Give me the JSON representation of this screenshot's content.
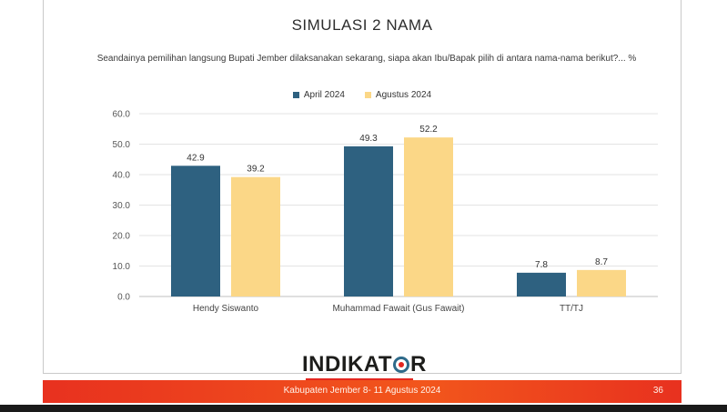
{
  "slide": {
    "title": "SIMULASI 2 NAMA",
    "question": "Seandainya pemilihan langsung Bupati Jember dilaksanakan sekarang, siapa akan Ibu/Bapak pilih di antara nama-nama berikut?... %"
  },
  "logo": {
    "text_part1": "INDIKAT",
    "text_part2": "R"
  },
  "footer": {
    "text": "Kabupaten Jember 8- 11 Agustus 2024",
    "page_number": "36"
  },
  "colors": {
    "april": "#2e6180",
    "agustus": "#fbd787",
    "footer": "#e8311f"
  },
  "chart_data": {
    "type": "bar",
    "title": "",
    "xlabel": "",
    "ylabel": "",
    "categories": [
      "Hendy Siswanto",
      "Muhammad Fawait (Gus Fawait)",
      "TT/TJ"
    ],
    "series": [
      {
        "name": "April 2024",
        "values": [
          42.9,
          49.3,
          7.8
        ],
        "labels": [
          "42.9",
          "49.3",
          "7.8"
        ]
      },
      {
        "name": "Agustus 2024",
        "values": [
          39.2,
          52.2,
          8.7
        ],
        "labels": [
          "39.2",
          "52.2",
          "8.7"
        ]
      }
    ],
    "ylim": [
      0,
      60
    ],
    "yticks": [
      0,
      10,
      20,
      30,
      40,
      50,
      60
    ],
    "ytick_labels": [
      "0.0",
      "10.0",
      "20.0",
      "30.0",
      "40.0",
      "50.0",
      "60.0"
    ],
    "grid": true,
    "legend": "top-center"
  }
}
